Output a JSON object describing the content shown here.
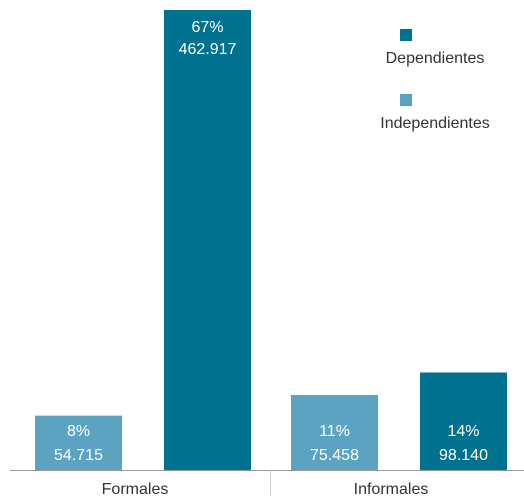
{
  "chart_data": {
    "type": "bar",
    "categories": [
      "Formales",
      "Informales"
    ],
    "series": [
      {
        "name": "Independientes",
        "color": "#5ba3c1",
        "values": [
          54715,
          75458
        ],
        "value_labels": [
          "54.715",
          "75.458"
        ],
        "shares": [
          8,
          11
        ],
        "share_labels": [
          "8%",
          "11%"
        ]
      },
      {
        "name": "Dependientes",
        "color": "#00718f",
        "values": [
          462917,
          98140
        ],
        "value_labels": [
          "462.917",
          "98.140"
        ],
        "shares": [
          67,
          14
        ],
        "share_labels": [
          "67%",
          "14%"
        ]
      }
    ],
    "legend": "upper right"
  }
}
